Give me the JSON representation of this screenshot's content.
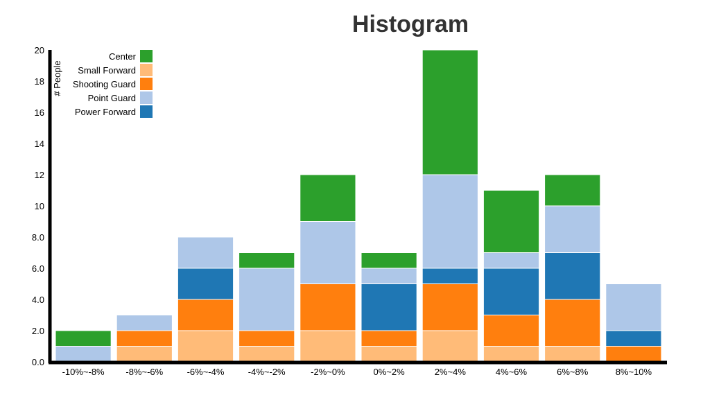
{
  "chart_data": {
    "type": "bar",
    "stacked": true,
    "title": "Histogram",
    "ylabel": "# People",
    "xlabel": "",
    "ylim": [
      0,
      20
    ],
    "yticks": [
      "0.0",
      "2.0",
      "4.0",
      "6.0",
      "8.0",
      "10",
      "12",
      "14",
      "16",
      "18",
      "20"
    ],
    "categories": [
      "-10%~-8%",
      "-8%~-6%",
      "-6%~-4%",
      "-4%~-2%",
      "-2%~0%",
      "0%~2%",
      "2%~4%",
      "4%~6%",
      "6%~8%",
      "8%~10%"
    ],
    "series": [
      {
        "name": "Small Forward",
        "color": "#ffbb78",
        "values": [
          0,
          1,
          2,
          1,
          2,
          1,
          2,
          1,
          1,
          0
        ]
      },
      {
        "name": "Shooting Guard",
        "color": "#ff7f0e",
        "values": [
          0,
          1,
          2,
          1,
          3,
          1,
          3,
          2,
          3,
          1
        ]
      },
      {
        "name": "Power Forward",
        "color": "#1f77b4",
        "values": [
          0,
          0,
          2,
          0,
          0,
          3,
          1,
          3,
          3,
          1
        ]
      },
      {
        "name": "Point Guard",
        "color": "#aec7e8",
        "values": [
          1,
          1,
          2,
          4,
          4,
          1,
          6,
          1,
          3,
          3
        ]
      },
      {
        "name": "Center",
        "color": "#2ca02c",
        "values": [
          1,
          0,
          0,
          1,
          3,
          1,
          8,
          4,
          2,
          0
        ]
      }
    ],
    "legend": {
      "placement": "top-left",
      "order": [
        "Center",
        "Small Forward",
        "Shooting Guard",
        "Point Guard",
        "Power Forward"
      ]
    },
    "grid": false
  }
}
